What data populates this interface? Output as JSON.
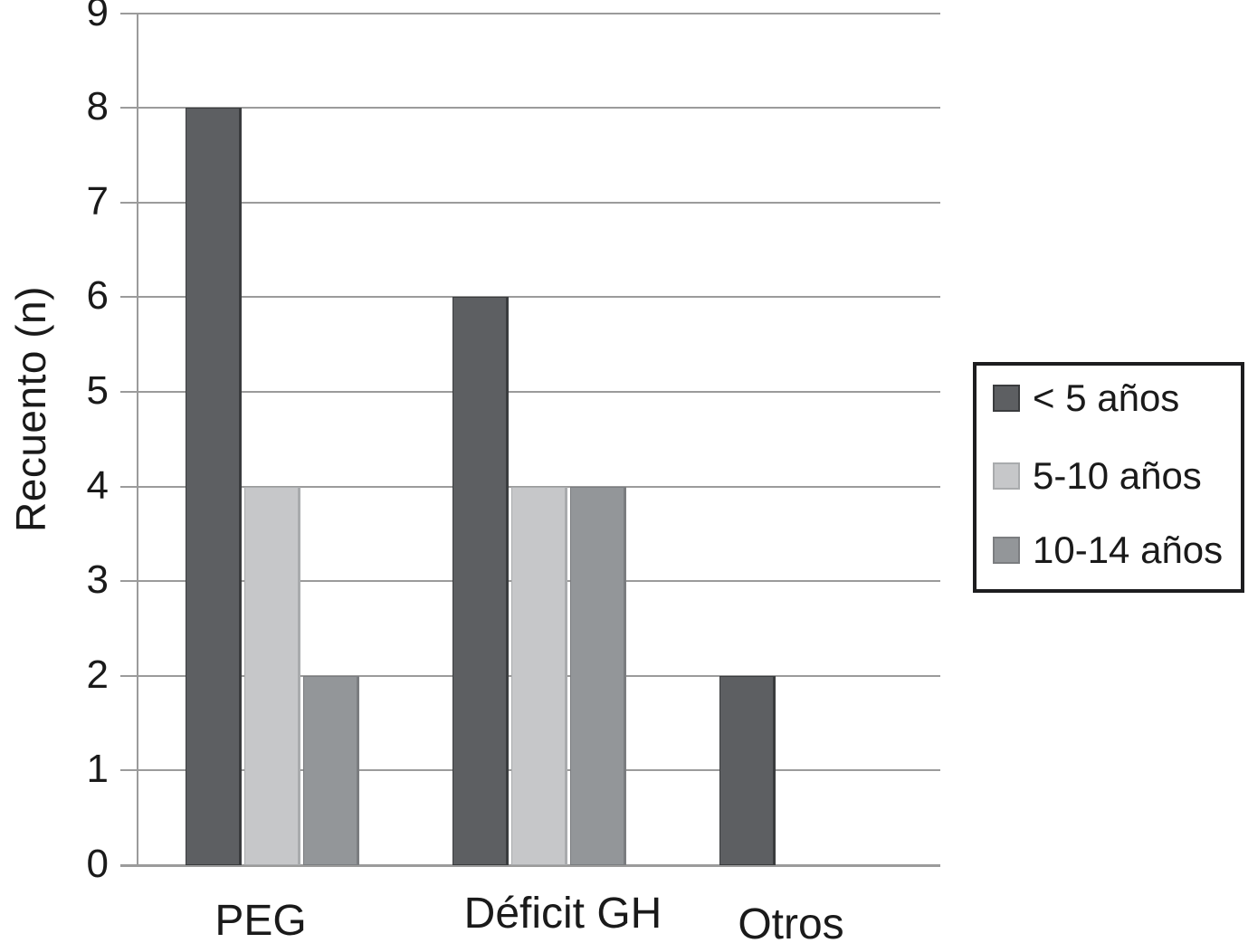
{
  "chart_data": {
    "type": "bar",
    "title": "",
    "xlabel": "",
    "ylabel": "Recuento (n)",
    "categories": [
      "PEG",
      "Déficit GH",
      "Otros"
    ],
    "series": [
      {
        "name": "< 5 años",
        "values": [
          8,
          6,
          2
        ],
        "color": "#5d5f62",
        "edge_color": "#3a3c3e"
      },
      {
        "name": "5-10 años",
        "values": [
          4,
          4,
          null
        ],
        "color": "#c6c7c9",
        "edge_color": "#a9abad"
      },
      {
        "name": "10-14 años",
        "values": [
          2,
          4,
          null
        ],
        "color": "#939699",
        "edge_color": "#7b7d80"
      }
    ],
    "ylim": [
      0,
      9
    ],
    "yticks": [
      0,
      1,
      2,
      3,
      4,
      5,
      6,
      7,
      8,
      9
    ],
    "grid": true,
    "legend_position": "right"
  },
  "colors": {
    "background": "#ffffff",
    "gridline": "#9b9b9b",
    "axis": "#9b9b9b",
    "text": "#1a1a1a",
    "legend_border": "#1d1d1f"
  }
}
